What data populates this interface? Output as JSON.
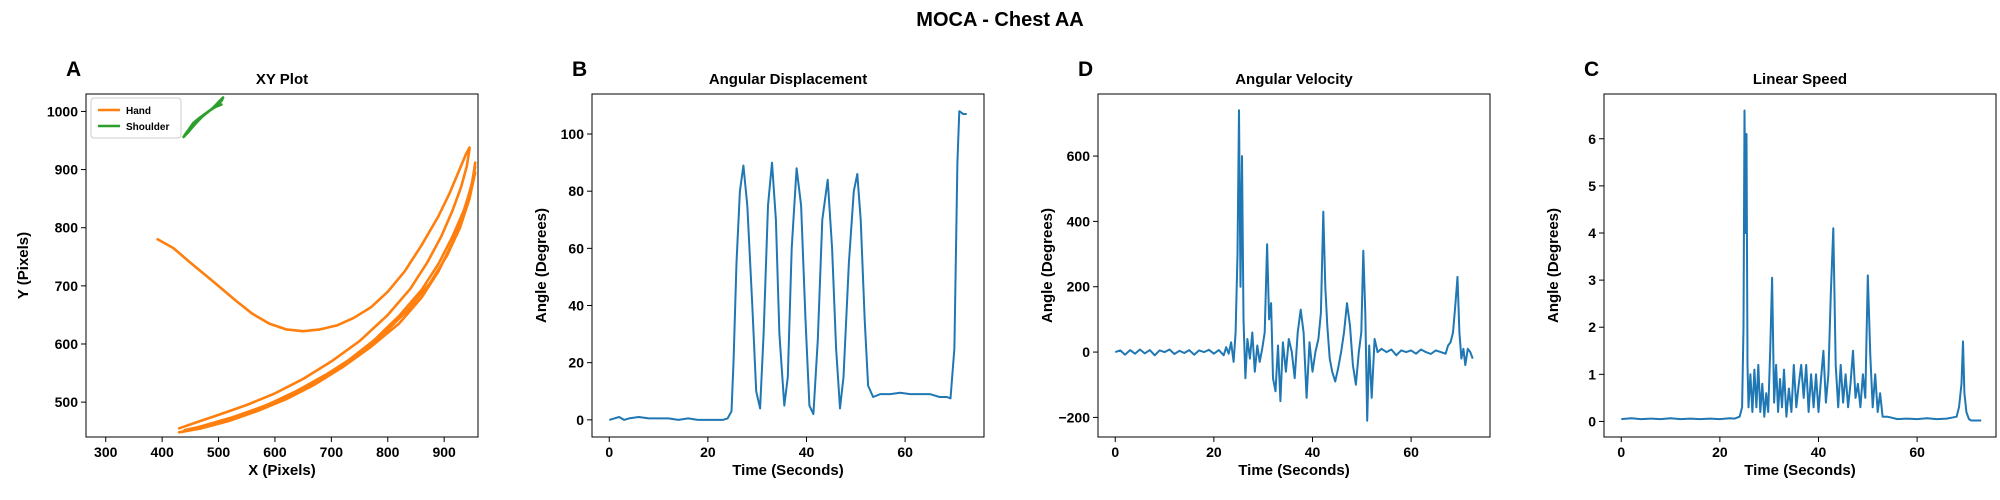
{
  "figure": {
    "suptitle": "MOCA - Chest AA",
    "colors": {
      "hand": "#ff7f0e",
      "shoulder": "#2ca02c",
      "series": "#1f77b4"
    }
  },
  "chart_data": [
    {
      "panel": "A",
      "type": "line",
      "title": "XY Plot",
      "xlabel": "X (Pixels)",
      "ylabel": "Y (Pixels)",
      "xlim": [
        265,
        960
      ],
      "ylim": [
        440,
        1030
      ],
      "xticks": [
        300,
        400,
        500,
        600,
        700,
        800,
        900
      ],
      "yticks": [
        500,
        600,
        700,
        800,
        900,
        1000
      ],
      "legend": {
        "placement": "top-left",
        "entries": [
          "Hand",
          "Shoulder"
        ]
      },
      "series": [
        {
          "name": "Hand",
          "color": "#ff7f0e",
          "x": [
            392,
            420,
            450,
            490,
            530,
            560,
            590,
            620,
            650,
            680,
            710,
            740,
            770,
            800,
            830,
            860,
            890,
            910,
            925,
            938,
            945
          ],
          "y": [
            780,
            765,
            740,
            708,
            675,
            652,
            635,
            625,
            622,
            625,
            632,
            645,
            663,
            690,
            725,
            770,
            820,
            860,
            895,
            925,
            938
          ]
        },
        {
          "name": "Hand",
          "color": "#ff7f0e",
          "x": [
            945,
            940,
            930,
            915,
            895,
            870,
            840,
            800,
            750,
            700,
            650,
            600,
            550,
            500,
            460,
            430
          ],
          "y": [
            935,
            905,
            870,
            830,
            785,
            740,
            695,
            650,
            605,
            570,
            540,
            515,
            495,
            478,
            465,
            455
          ]
        },
        {
          "name": "Hand",
          "color": "#ff7f0e",
          "x": [
            430,
            470,
            520,
            570,
            620,
            670,
            720,
            770,
            820,
            860,
            890,
            915,
            935,
            950,
            955
          ],
          "y": [
            448,
            455,
            468,
            485,
            505,
            530,
            560,
            595,
            635,
            680,
            725,
            775,
            825,
            880,
            912
          ]
        },
        {
          "name": "Hand",
          "color": "#ff7f0e",
          "x": [
            955,
            948,
            935,
            915,
            890,
            860,
            820,
            775,
            725,
            675,
            625,
            575,
            525,
            475,
            440
          ],
          "y": [
            905,
            870,
            830,
            785,
            738,
            693,
            648,
            606,
            568,
            537,
            511,
            491,
            474,
            460,
            450
          ]
        },
        {
          "name": "Hand",
          "color": "#ff7f0e",
          "x": [
            440,
            490,
            540,
            590,
            640,
            690,
            740,
            790,
            835,
            875,
            905,
            928,
            945,
            955
          ],
          "y": [
            452,
            462,
            478,
            497,
            520,
            547,
            578,
            615,
            658,
            705,
            752,
            800,
            850,
            895
          ]
        },
        {
          "name": "Shoulder",
          "color": "#2ca02c",
          "x": [
            440,
            445,
            450,
            458,
            465,
            472,
            480,
            490,
            500,
            508,
            505,
            495,
            485,
            475,
            465,
            455,
            448,
            442,
            438,
            445,
            452,
            460,
            470,
            482,
            495,
            505
          ],
          "y": [
            958,
            965,
            972,
            980,
            986,
            992,
            998,
            1006,
            1016,
            1024,
            1018,
            1010,
            1002,
            995,
            988,
            980,
            970,
            962,
            956,
            963,
            971,
            980,
            990,
            1000,
            1008,
            1012
          ]
        }
      ]
    },
    {
      "panel": "B",
      "type": "line",
      "title": "Angular Displacement",
      "xlabel": "Time (Seconds)",
      "ylabel": "Angle (Degrees)",
      "xlim": [
        -3.5,
        76
      ],
      "ylim": [
        -6,
        114
      ],
      "xticks": [
        0,
        20,
        40,
        60
      ],
      "yticks": [
        0,
        20,
        40,
        60,
        80,
        100
      ],
      "color": "#1f77b4",
      "x": [
        0,
        1,
        2,
        3,
        4,
        6,
        8,
        10,
        12,
        14,
        16,
        18,
        20,
        22,
        23,
        24,
        24.8,
        25.2,
        25.8,
        26.5,
        27.2,
        28,
        29,
        29.8,
        30.6,
        31.3,
        32.2,
        33,
        33.8,
        34.5,
        35.5,
        36.2,
        37,
        38,
        38.9,
        39.8,
        40.6,
        41.4,
        42.3,
        43.2,
        44.3,
        45.2,
        46,
        46.8,
        47.5,
        48.6,
        49.6,
        50.3,
        51,
        51.8,
        52.5,
        53.5,
        55,
        57,
        59,
        61,
        63,
        65,
        67,
        68.5,
        69.2,
        70,
        70.6,
        71,
        71.8,
        72.5
      ],
      "y": [
        0,
        0.5,
        1,
        0,
        0.5,
        1,
        0.5,
        0.5,
        0.5,
        0,
        0.5,
        0,
        0,
        0,
        0,
        0.5,
        3,
        20,
        55,
        80,
        89,
        75,
        40,
        10,
        4,
        30,
        75,
        90,
        70,
        30,
        5,
        15,
        60,
        88,
        75,
        35,
        5,
        2,
        28,
        70,
        84,
        60,
        25,
        4,
        15,
        55,
        80,
        86,
        70,
        35,
        12,
        8,
        9,
        9,
        9.5,
        9,
        9,
        9,
        8,
        8,
        7.5,
        25,
        90,
        108,
        107,
        107
      ]
    },
    {
      "panel": "D",
      "type": "line",
      "title": "Angular Velocity",
      "xlabel": "Time (Seconds)",
      "ylabel": "Angle (Degrees)",
      "xlim": [
        -3.5,
        76
      ],
      "ylim": [
        -260,
        790
      ],
      "xticks": [
        0,
        20,
        40,
        60
      ],
      "yticks": [
        -200,
        0,
        200,
        400,
        600
      ],
      "color": "#1f77b4",
      "x": [
        0,
        1,
        2,
        3,
        4,
        5,
        6,
        7,
        8,
        9,
        10,
        11,
        12,
        13,
        14,
        15,
        16,
        17,
        18,
        19,
        20,
        21,
        22,
        22.5,
        23,
        23.5,
        24,
        24.4,
        24.8,
        25.1,
        25.4,
        25.7,
        26,
        26.4,
        26.8,
        27.3,
        27.8,
        28.3,
        28.8,
        29.3,
        29.8,
        30.3,
        30.8,
        31.2,
        31.6,
        32,
        32.5,
        33,
        33.5,
        34,
        34.6,
        35.2,
        35.8,
        36.4,
        37,
        37.6,
        38.2,
        38.8,
        39.4,
        40,
        40.6,
        41.2,
        41.7,
        42.2,
        42.6,
        43,
        43.5,
        44,
        44.6,
        45.2,
        45.8,
        46.4,
        47,
        47.6,
        48.2,
        48.8,
        49.4,
        49.9,
        50.3,
        50.7,
        51.1,
        51.5,
        52,
        52.6,
        53.2,
        54,
        55,
        56,
        57,
        58,
        59,
        60,
        61,
        62,
        63,
        64,
        65,
        66,
        67,
        67.5,
        68,
        68.5,
        69,
        69.4,
        69.8,
        70.2,
        70.6,
        71,
        71.5,
        72,
        72.5
      ],
      "y": [
        0,
        5,
        -8,
        6,
        -5,
        8,
        -4,
        6,
        -10,
        5,
        0,
        8,
        -6,
        4,
        -3,
        6,
        -8,
        5,
        0,
        7,
        -5,
        6,
        -10,
        15,
        -5,
        30,
        -30,
        60,
        300,
        740,
        200,
        600,
        100,
        -80,
        40,
        -20,
        60,
        -60,
        20,
        -30,
        10,
        60,
        330,
        100,
        150,
        -80,
        -120,
        20,
        -150,
        30,
        -60,
        40,
        0,
        -80,
        60,
        130,
        60,
        -140,
        30,
        -60,
        0,
        40,
        120,
        430,
        200,
        80,
        -20,
        -60,
        -90,
        -50,
        0,
        60,
        150,
        80,
        -40,
        -100,
        0,
        60,
        310,
        120,
        -210,
        20,
        -140,
        40,
        0,
        10,
        0,
        8,
        -10,
        5,
        0,
        5,
        -5,
        8,
        0,
        -6,
        5,
        0,
        -5,
        20,
        30,
        60,
        150,
        230,
        60,
        -20,
        10,
        -40,
        10,
        0,
        -20
      ]
    },
    {
      "panel": "C",
      "type": "line",
      "title": "Linear Speed",
      "xlabel": "Time (Seconds)",
      "ylabel": "Angle (Degrees)",
      "xlim": [
        -3.5,
        76
      ],
      "ylim": [
        -0.33,
        6.95
      ],
      "xticks": [
        0,
        20,
        40,
        60
      ],
      "yticks": [
        0,
        1,
        2,
        3,
        4,
        5,
        6
      ],
      "color": "#1f77b4",
      "x": [
        0,
        2,
        4,
        6,
        8,
        10,
        12,
        14,
        16,
        18,
        20,
        22,
        23,
        24,
        24.5,
        24.8,
        25,
        25.2,
        25.4,
        25.6,
        25.8,
        26.2,
        26.6,
        27,
        27.4,
        27.8,
        28.2,
        28.6,
        29,
        29.4,
        29.8,
        30.2,
        30.6,
        31,
        31.4,
        31.8,
        32.2,
        32.6,
        33,
        33.5,
        34,
        34.5,
        35,
        35.5,
        36,
        36.5,
        37,
        37.5,
        38,
        38.5,
        39,
        39.5,
        40,
        40.5,
        41,
        41.5,
        42,
        42.5,
        43,
        43.5,
        44,
        44.5,
        45,
        45.5,
        46,
        46.5,
        47,
        47.5,
        48,
        48.5,
        49,
        49.5,
        50,
        50.5,
        51,
        51.5,
        52,
        52.5,
        53,
        54,
        56,
        58,
        60,
        62,
        64,
        66,
        67,
        68,
        68.5,
        69,
        69.3,
        69.6,
        70,
        70.5,
        71,
        72,
        73
      ],
      "y": [
        0.05,
        0.07,
        0.05,
        0.06,
        0.05,
        0.07,
        0.05,
        0.06,
        0.05,
        0.06,
        0.05,
        0.07,
        0.06,
        0.1,
        0.3,
        2,
        6.6,
        4,
        6.1,
        1.2,
        0.3,
        1,
        0.2,
        1.1,
        0.3,
        1.2,
        0.2,
        0.8,
        0.1,
        0.6,
        0.2,
        1.5,
        3.05,
        0.4,
        1.2,
        0.2,
        0.9,
        0.3,
        1.1,
        0.1,
        0.7,
        0.2,
        1.2,
        0.3,
        0.8,
        1.2,
        0.5,
        1.2,
        0.2,
        1.0,
        0.3,
        1.0,
        0.2,
        0.9,
        1.5,
        0.4,
        1.0,
        2.7,
        4.1,
        1.2,
        0.3,
        1.2,
        0.4,
        1.0,
        0.3,
        0.8,
        1.5,
        0.5,
        0.8,
        0.3,
        1.0,
        0.5,
        3.1,
        1.4,
        0.3,
        1.0,
        0.2,
        0.6,
        0.1,
        0.1,
        0.05,
        0.06,
        0.05,
        0.07,
        0.05,
        0.06,
        0.08,
        0.1,
        0.3,
        0.8,
        1.7,
        0.6,
        0.2,
        0.05,
        0.02,
        0.02,
        0.02
      ]
    }
  ]
}
